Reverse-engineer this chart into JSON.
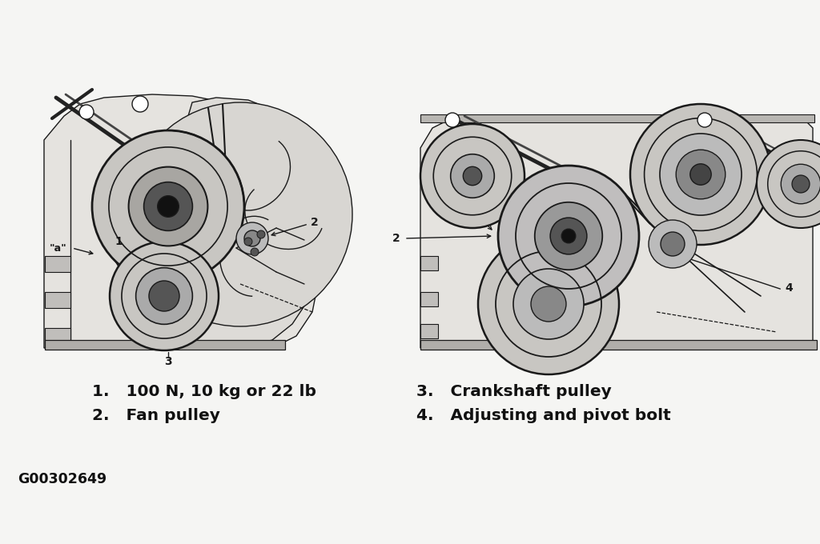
{
  "background_color": "#f5f5f3",
  "legend_items_col1": [
    {
      "num": "1.",
      "text": "  100 N, 10 kg or 22 lb"
    },
    {
      "num": "2.",
      "text": "  Fan pulley"
    }
  ],
  "legend_items_col2": [
    {
      "num": "3.",
      "text": "  Crankshaft pulley"
    },
    {
      "num": "4.",
      "text": "  Adjusting and pivot bolt"
    }
  ],
  "diagram_code": "G00302649",
  "text_color": "#111111",
  "line_color": "#1a1a1a",
  "figsize": [
    10.24,
    6.8
  ],
  "dpi": 100
}
